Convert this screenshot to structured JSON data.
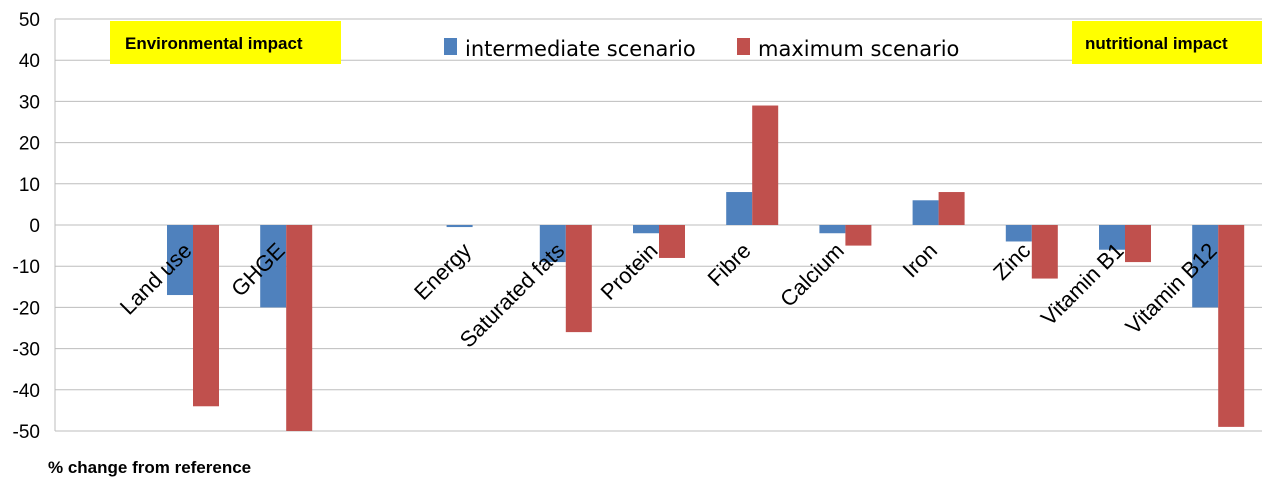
{
  "chart_data": {
    "type": "bar",
    "categories": [
      "Land use",
      "GHGE",
      "",
      "Energy",
      "Saturated fats",
      "Protein",
      "Fibre",
      "Calcium",
      "Iron",
      "Zinc",
      "Vitamin B1",
      "Vitamin B12"
    ],
    "series": [
      {
        "name": "intermediate scenario",
        "color": "#4f81bd",
        "values": [
          -17,
          -20,
          null,
          -0.5,
          -9,
          -2,
          8,
          -2,
          6,
          -4,
          -6,
          -20
        ]
      },
      {
        "name": "maximum scenario",
        "color": "#c0504d",
        "values": [
          -44,
          -50,
          null,
          0,
          -26,
          -8,
          29,
          -5,
          8,
          -13,
          -9,
          -49
        ]
      }
    ],
    "ylim": [
      -50,
      50
    ],
    "yticks": [
      50,
      40,
      30,
      20,
      10,
      0,
      -10,
      -20,
      -30,
      -40,
      -50
    ],
    "grid": true,
    "legend": "top-center",
    "ylabel": "% change from reference",
    "annotations": {
      "left": "Environmental impact",
      "right": "nutritional impact"
    },
    "annotation_color": "#ffff00"
  }
}
